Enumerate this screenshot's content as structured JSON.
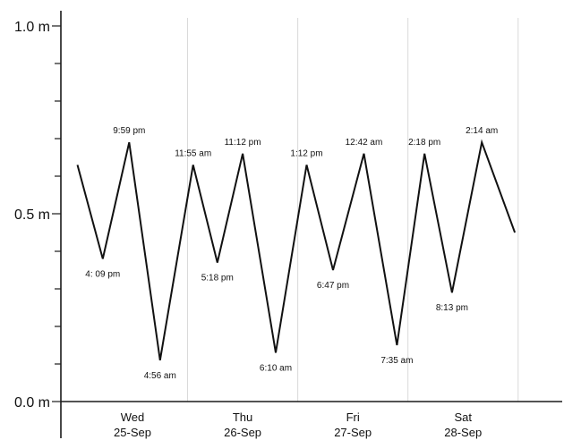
{
  "chart_data": {
    "type": "line",
    "ylim": [
      0,
      1.0
    ],
    "y_ticks": [
      {
        "value": 1.0,
        "label": "1.0 m"
      },
      {
        "value": 0.5,
        "label": "0.5 m"
      },
      {
        "value": 0.0,
        "label": "0.0 m"
      }
    ],
    "y_minor_ticks": [
      0.1,
      0.2,
      0.3,
      0.4,
      0.6,
      0.7,
      0.8,
      0.9
    ],
    "day_labels": [
      {
        "day": "Wed",
        "date": "25-Sep",
        "x": 0.5
      },
      {
        "day": "Thu",
        "date": "26-Sep",
        "x": 1.5
      },
      {
        "day": "Fri",
        "date": "27-Sep",
        "x": 2.5
      },
      {
        "day": "Sat",
        "date": "28-Sep",
        "x": 3.5
      }
    ],
    "day_boundaries": [
      1,
      2,
      3,
      4
    ],
    "xlim": [
      -0.15,
      4.4
    ],
    "grid": "vertical day separators",
    "points": [
      {
        "x": 0.0,
        "y": 0.63,
        "label": ""
      },
      {
        "x": 0.23,
        "y": 0.38,
        "label": "4: 09 pm",
        "pos": "below"
      },
      {
        "x": 0.47,
        "y": 0.69,
        "label": "9:59 pm",
        "pos": "above"
      },
      {
        "x": 0.75,
        "y": 0.11,
        "label": "4:56 am",
        "pos": "below"
      },
      {
        "x": 1.05,
        "y": 0.63,
        "label": "11:55 am",
        "pos": "above"
      },
      {
        "x": 1.27,
        "y": 0.37,
        "label": "5:18 pm",
        "pos": "below"
      },
      {
        "x": 1.5,
        "y": 0.66,
        "label": "11:12 pm",
        "pos": "above"
      },
      {
        "x": 1.8,
        "y": 0.13,
        "label": "6:10 am",
        "pos": "below"
      },
      {
        "x": 2.08,
        "y": 0.63,
        "label": "1:12 pm",
        "pos": "above"
      },
      {
        "x": 2.32,
        "y": 0.35,
        "label": "6:47 pm",
        "pos": "below"
      },
      {
        "x": 2.6,
        "y": 0.66,
        "label": "12:42 am",
        "pos": "above"
      },
      {
        "x": 2.9,
        "y": 0.15,
        "label": "7:35 am",
        "pos": "below"
      },
      {
        "x": 3.15,
        "y": 0.66,
        "label": "2:18 pm",
        "pos": "above"
      },
      {
        "x": 3.4,
        "y": 0.29,
        "label": "8:13 pm",
        "pos": "below"
      },
      {
        "x": 3.67,
        "y": 0.69,
        "label": "2:14 am",
        "pos": "above"
      },
      {
        "x": 3.97,
        "y": 0.45,
        "label": ""
      }
    ]
  }
}
